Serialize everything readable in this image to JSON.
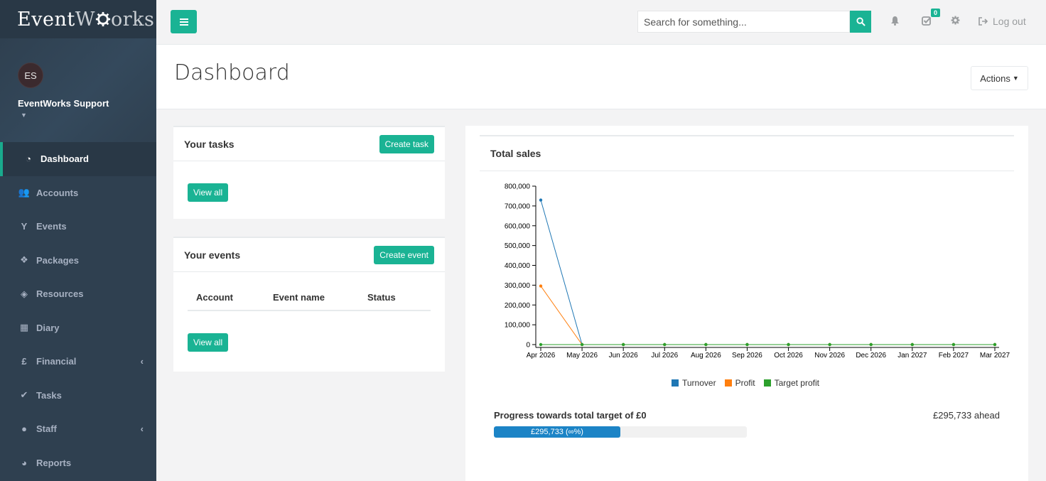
{
  "brand": {
    "logo_prefix": "Event",
    "logo_suffix": "orks"
  },
  "profile": {
    "initials": "ES",
    "name": "EventWorks Support"
  },
  "sidebar": {
    "items": [
      {
        "label": "Dashboard",
        "icon": "dashboard-icon",
        "glyph": "◔"
      },
      {
        "label": "Accounts",
        "icon": "users-icon",
        "glyph": "👥"
      },
      {
        "label": "Events",
        "icon": "glass-icon",
        "glyph": "Y"
      },
      {
        "label": "Packages",
        "icon": "cubes-icon",
        "glyph": "❖"
      },
      {
        "label": "Resources",
        "icon": "cube-icon",
        "glyph": "◈"
      },
      {
        "label": "Diary",
        "icon": "calendar-icon",
        "glyph": "▦"
      },
      {
        "label": "Financial",
        "icon": "pound-icon",
        "glyph": "£"
      },
      {
        "label": "Tasks",
        "icon": "check-icon",
        "glyph": "✔"
      },
      {
        "label": "Staff",
        "icon": "user-icon",
        "glyph": "●"
      },
      {
        "label": "Reports",
        "icon": "pie-chart-icon",
        "glyph": "◕"
      }
    ]
  },
  "topbar": {
    "search_placeholder": "Search for something...",
    "tasks_badge": "0",
    "logout_label": "Log out"
  },
  "page": {
    "title": "Dashboard",
    "actions_label": "Actions"
  },
  "tasks_panel": {
    "title": "Your tasks",
    "create_label": "Create task",
    "view_all_label": "View all"
  },
  "events_panel": {
    "title": "Your events",
    "create_label": "Create event",
    "columns": [
      "Account",
      "Event name",
      "Status"
    ],
    "view_all_label": "View all"
  },
  "sales_panel": {
    "title": "Total sales",
    "progress_label": "Progress towards total target of £0",
    "progress_ahead": "£295,733 ahead",
    "progress_bar_text": "£295,733 (∞%)",
    "progress_fraction": 0.5
  },
  "colors": {
    "accent": "#1ab394",
    "turnover": "#1f77b4",
    "profit": "#ff7f0e",
    "target": "#2ca02c",
    "sidebar": "#2f4050"
  },
  "chart_data": {
    "type": "line",
    "categories": [
      "Apr 2026",
      "May 2026",
      "Jun 2026",
      "Jul 2026",
      "Aug 2026",
      "Sep 2026",
      "Oct 2026",
      "Nov 2026",
      "Dec 2026",
      "Jan 2027",
      "Feb 2027",
      "Mar 2027"
    ],
    "series": [
      {
        "name": "Turnover",
        "color": "#1f77b4",
        "values": [
          730000,
          0,
          0,
          0,
          0,
          0,
          0,
          0,
          0,
          0,
          0,
          0
        ]
      },
      {
        "name": "Profit",
        "color": "#ff7f0e",
        "values": [
          295733,
          0,
          0,
          0,
          0,
          0,
          0,
          0,
          0,
          0,
          0,
          0
        ]
      },
      {
        "name": "Target profit",
        "color": "#2ca02c",
        "values": [
          0,
          0,
          0,
          0,
          0,
          0,
          0,
          0,
          0,
          0,
          0,
          0
        ]
      }
    ],
    "yticks": [
      "0",
      "100,000",
      "200,000",
      "300,000",
      "400,000",
      "500,000",
      "600,000",
      "700,000",
      "800,000"
    ],
    "ylim": [
      0,
      800000
    ],
    "legend": "bottom"
  }
}
